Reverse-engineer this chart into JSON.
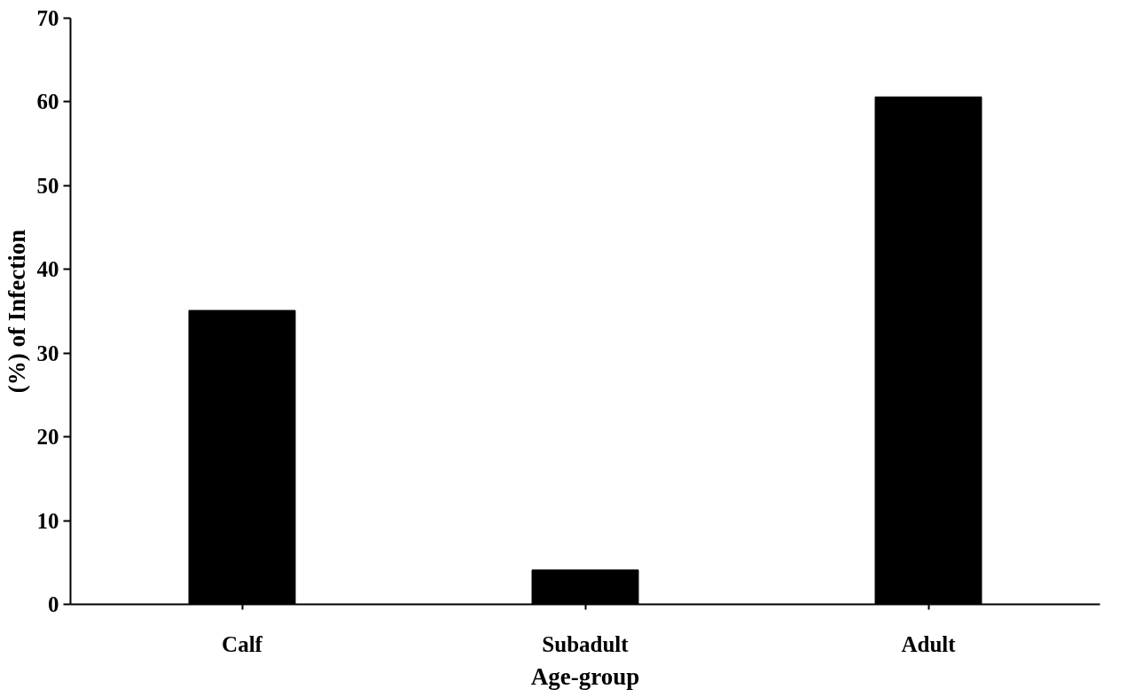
{
  "chart_data": {
    "type": "bar",
    "xlabel": "Age-group",
    "ylabel": "(%) of Infection",
    "categories": [
      "Calf",
      "Subadult",
      "Adult"
    ],
    "values": [
      35.1,
      4.1,
      60.6
    ],
    "color": "#000000",
    "ylim": [
      0,
      70
    ],
    "yticks": [
      0,
      10,
      20,
      30,
      40,
      50,
      60,
      70
    ],
    "grid": false
  }
}
